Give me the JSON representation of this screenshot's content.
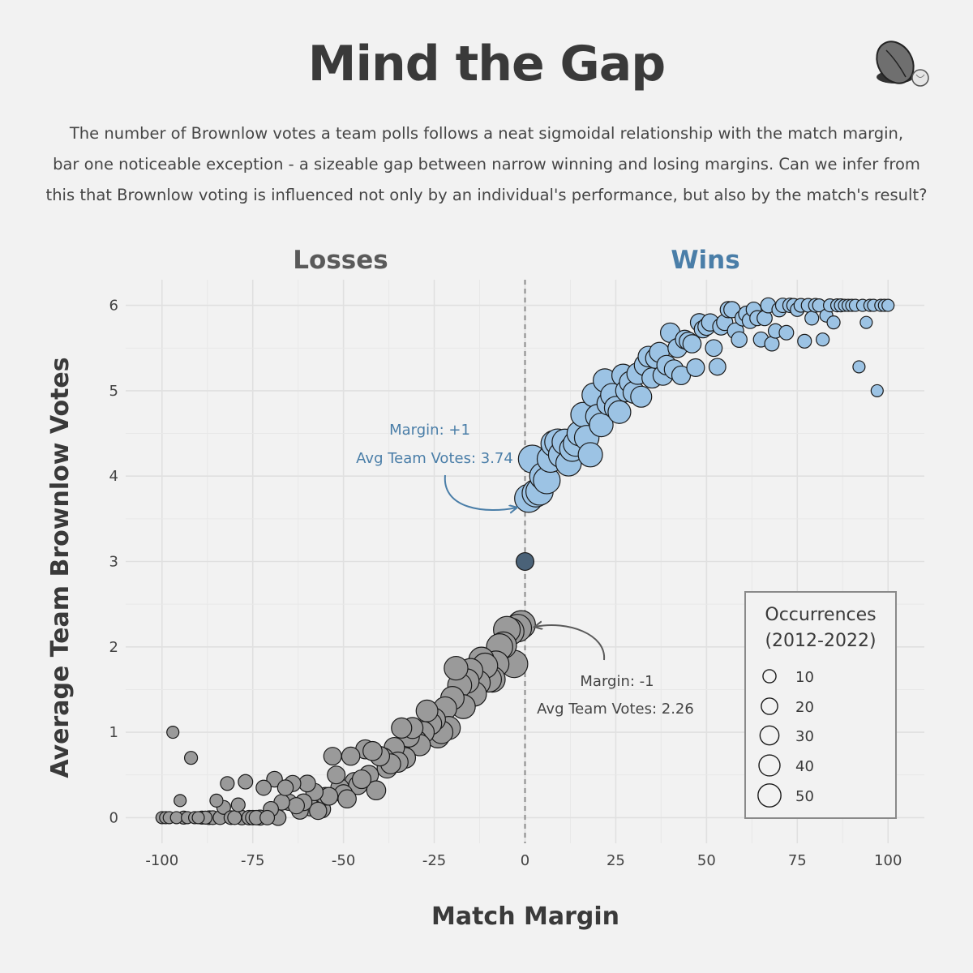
{
  "header": {
    "title": "Mind the Gap",
    "subtitle_lines": [
      "The number of Brownlow votes a team polls follows a neat sigmoidal relationship with the match margin,",
      "bar one noticeable exception - a sizeable gap between narrow winning and losing margins. Can we infer from",
      "this that Brownlow voting is influenced not only by an individual's performance, but also by the match's result?"
    ],
    "logo_icon": "football-icon"
  },
  "chart_data": {
    "type": "scatter",
    "xlabel": "Match Margin",
    "ylabel": "Average Team Brownlow Votes",
    "xlim": [
      -110,
      110
    ],
    "ylim": [
      -0.3,
      6.3
    ],
    "x_ticks": [
      -100,
      -75,
      -50,
      -25,
      0,
      25,
      50,
      75,
      100
    ],
    "y_ticks": [
      0,
      1,
      2,
      3,
      4,
      5,
      6
    ],
    "grid": true,
    "group_labels": {
      "losses": "Losses",
      "wins": "Wins"
    },
    "colors": {
      "losses": "#9a9a9a",
      "wins": "#9cc3e4",
      "draw": "#4a6278",
      "wins_text": "#4a7ea8",
      "losses_text": "#5a5a5a"
    },
    "zero_line": true,
    "annotations": [
      {
        "lines": [
          "Margin: +1",
          "Avg Team Votes: 3.74"
        ],
        "x": 1,
        "y": 3.74,
        "group": "wins"
      },
      {
        "lines": [
          "Margin: -1",
          "Avg Team Votes: 2.26"
        ],
        "x": -1,
        "y": 2.26,
        "group": "losses"
      }
    ],
    "legend": {
      "title_lines": [
        "Occurrences",
        "(2012-2022)"
      ],
      "placement": "bottom-right",
      "sizes": [
        10,
        20,
        30,
        40,
        50
      ],
      "labels": [
        "10",
        "20",
        "30",
        "40",
        "50"
      ]
    },
    "series": [
      {
        "group": "losses",
        "points": [
          [
            -100,
            0,
            3
          ],
          [
            -99,
            0,
            3
          ],
          [
            -98,
            0,
            3
          ],
          [
            -97,
            1,
            3
          ],
          [
            -96,
            0,
            3
          ],
          [
            -95,
            0.2,
            3
          ],
          [
            -94,
            0,
            4
          ],
          [
            -93,
            0,
            3
          ],
          [
            -92,
            0.7,
            4
          ],
          [
            -91,
            0,
            3
          ],
          [
            -90,
            0,
            3
          ],
          [
            -89,
            0,
            4
          ],
          [
            -88,
            0,
            4
          ],
          [
            -87,
            0,
            5
          ],
          [
            -86,
            0,
            5
          ],
          [
            -85,
            0.2,
            4
          ],
          [
            -84,
            0,
            5
          ],
          [
            -83,
            0.12,
            5
          ],
          [
            -82,
            0.4,
            5
          ],
          [
            -81,
            0,
            5
          ],
          [
            -80,
            0,
            5
          ],
          [
            -79,
            0.15,
            5
          ],
          [
            -78,
            0,
            6
          ],
          [
            -77,
            0.42,
            6
          ],
          [
            -76,
            0,
            6
          ],
          [
            -75,
            0,
            6
          ],
          [
            -74,
            0,
            6
          ],
          [
            -73,
            0,
            7
          ],
          [
            -72,
            0.35,
            7
          ],
          [
            -71,
            0,
            6
          ],
          [
            -70,
            0.1,
            7
          ],
          [
            -69,
            0.45,
            8
          ],
          [
            -68,
            0,
            8
          ],
          [
            -67,
            0.18,
            8
          ],
          [
            -66,
            0.35,
            8
          ],
          [
            -65,
            0.18,
            9
          ],
          [
            -64,
            0.4,
            9
          ],
          [
            -63,
            0.14,
            9
          ],
          [
            -62,
            0.08,
            10
          ],
          [
            -61,
            0.18,
            10
          ],
          [
            -60,
            0.4,
            10
          ],
          [
            -59,
            0.12,
            11
          ],
          [
            -58,
            0.3,
            11
          ],
          [
            -57,
            0.08,
            11
          ],
          [
            -56,
            0.1,
            12
          ],
          [
            -55,
            0.25,
            12
          ],
          [
            -54,
            0.25,
            12
          ],
          [
            -53,
            0.72,
            12
          ],
          [
            -52,
            0.5,
            12
          ],
          [
            -51,
            0.35,
            13
          ],
          [
            -50,
            0.28,
            13
          ],
          [
            -49,
            0.22,
            13
          ],
          [
            -48,
            0.72,
            13
          ],
          [
            -47,
            0.42,
            14
          ],
          [
            -46,
            0.38,
            14
          ],
          [
            -45,
            0.45,
            14
          ],
          [
            -44,
            0.8,
            15
          ],
          [
            -43,
            0.5,
            15
          ],
          [
            -42,
            0.78,
            15
          ],
          [
            -41,
            0.32,
            15
          ],
          [
            -40,
            0.72,
            16
          ],
          [
            -39,
            0.7,
            17
          ],
          [
            -38,
            0.58,
            17
          ],
          [
            -37,
            0.63,
            17
          ],
          [
            -36,
            0.82,
            18
          ],
          [
            -35,
            0.65,
            18
          ],
          [
            -34,
            1.05,
            18
          ],
          [
            -33,
            0.7,
            19
          ],
          [
            -32,
            0.95,
            20
          ],
          [
            -31,
            1.05,
            20
          ],
          [
            -30,
            0.9,
            21
          ],
          [
            -29,
            0.85,
            21
          ],
          [
            -28,
            1.0,
            22
          ],
          [
            -27,
            1.25,
            22
          ],
          [
            -26,
            1.1,
            23
          ],
          [
            -25,
            1.15,
            24
          ],
          [
            -24,
            0.95,
            25
          ],
          [
            -23,
            1.0,
            25
          ],
          [
            -22,
            1.28,
            26
          ],
          [
            -21,
            1.05,
            26
          ],
          [
            -20,
            1.4,
            27
          ],
          [
            -19,
            1.75,
            28
          ],
          [
            -18,
            1.55,
            29
          ],
          [
            -17,
            1.3,
            29
          ],
          [
            -16,
            1.6,
            30
          ],
          [
            -15,
            1.72,
            31
          ],
          [
            -14,
            1.45,
            31
          ],
          [
            -13,
            1.58,
            32
          ],
          [
            -12,
            1.85,
            33
          ],
          [
            -11,
            1.78,
            33
          ],
          [
            -10,
            1.62,
            34
          ],
          [
            -9,
            1.62,
            35
          ],
          [
            -8,
            1.8,
            36
          ],
          [
            -7,
            2.0,
            37
          ],
          [
            -6,
            2.02,
            38
          ],
          [
            -5,
            2.2,
            39
          ],
          [
            -4,
            2.18,
            40
          ],
          [
            -3,
            1.8,
            41
          ],
          [
            -2,
            2.22,
            42
          ],
          [
            -1,
            2.26,
            44
          ]
        ]
      },
      {
        "group": "draw",
        "points": [
          [
            0,
            3.0,
            12
          ]
        ]
      },
      {
        "group": "wins",
        "points": [
          [
            1,
            3.74,
            44
          ],
          [
            2,
            4.2,
            43
          ],
          [
            3,
            3.8,
            42
          ],
          [
            4,
            3.82,
            41
          ],
          [
            5,
            4.0,
            40
          ],
          [
            6,
            3.95,
            39
          ],
          [
            7,
            4.2,
            38
          ],
          [
            8,
            4.38,
            37
          ],
          [
            9,
            4.4,
            36
          ],
          [
            10,
            4.25,
            35
          ],
          [
            11,
            4.4,
            35
          ],
          [
            12,
            4.15,
            34
          ],
          [
            13,
            4.32,
            33
          ],
          [
            14,
            4.38,
            33
          ],
          [
            15,
            4.5,
            32
          ],
          [
            16,
            4.72,
            31
          ],
          [
            17,
            4.45,
            31
          ],
          [
            18,
            4.25,
            30
          ],
          [
            19,
            4.95,
            29
          ],
          [
            20,
            4.7,
            29
          ],
          [
            21,
            4.6,
            28
          ],
          [
            22,
            5.12,
            27
          ],
          [
            23,
            4.85,
            26
          ],
          [
            24,
            4.95,
            26
          ],
          [
            25,
            4.8,
            25
          ],
          [
            26,
            4.75,
            25
          ],
          [
            27,
            5.18,
            24
          ],
          [
            28,
            5.0,
            23
          ],
          [
            29,
            5.1,
            22
          ],
          [
            30,
            4.98,
            22
          ],
          [
            31,
            5.2,
            21
          ],
          [
            32,
            4.93,
            20
          ],
          [
            33,
            5.3,
            20
          ],
          [
            34,
            5.4,
            19
          ],
          [
            35,
            5.15,
            18
          ],
          [
            36,
            5.38,
            18
          ],
          [
            37,
            5.45,
            17
          ],
          [
            38,
            5.18,
            17
          ],
          [
            39,
            5.3,
            16
          ],
          [
            40,
            5.68,
            16
          ],
          [
            41,
            5.25,
            15
          ],
          [
            42,
            5.5,
            15
          ],
          [
            43,
            5.18,
            14
          ],
          [
            44,
            5.6,
            14
          ],
          [
            45,
            5.58,
            13
          ],
          [
            46,
            5.55,
            13
          ],
          [
            47,
            5.27,
            12
          ],
          [
            48,
            5.8,
            12
          ],
          [
            49,
            5.72,
            11
          ],
          [
            50,
            5.75,
            11
          ],
          [
            51,
            5.8,
            11
          ],
          [
            52,
            5.5,
            10
          ],
          [
            53,
            5.28,
            10
          ],
          [
            54,
            5.75,
            10
          ],
          [
            55,
            5.8,
            9
          ],
          [
            56,
            5.95,
            9
          ],
          [
            57,
            5.95,
            9
          ],
          [
            58,
            5.7,
            9
          ],
          [
            59,
            5.6,
            8
          ],
          [
            60,
            5.85,
            8
          ],
          [
            61,
            5.9,
            8
          ],
          [
            62,
            5.82,
            8
          ],
          [
            63,
            5.95,
            7
          ],
          [
            64,
            5.85,
            7
          ],
          [
            65,
            5.6,
            7
          ],
          [
            66,
            5.85,
            7
          ],
          [
            67,
            6.0,
            7
          ],
          [
            68,
            5.55,
            6
          ],
          [
            69,
            5.7,
            6
          ],
          [
            70,
            5.95,
            6
          ],
          [
            71,
            6.0,
            6
          ],
          [
            72,
            5.68,
            6
          ],
          [
            73,
            6.0,
            6
          ],
          [
            74,
            6.0,
            5
          ],
          [
            75,
            5.95,
            5
          ],
          [
            76,
            6.0,
            5
          ],
          [
            77,
            5.58,
            5
          ],
          [
            78,
            6.0,
            5
          ],
          [
            79,
            5.85,
            5
          ],
          [
            80,
            6.0,
            5
          ],
          [
            81,
            6.0,
            4
          ],
          [
            82,
            5.6,
            4
          ],
          [
            83,
            5.88,
            4
          ],
          [
            84,
            6.0,
            4
          ],
          [
            85,
            5.8,
            4
          ],
          [
            86,
            6.0,
            4
          ],
          [
            87,
            6.0,
            4
          ],
          [
            88,
            6.0,
            3
          ],
          [
            89,
            6.0,
            3
          ],
          [
            90,
            6.0,
            3
          ],
          [
            91,
            6.0,
            3
          ],
          [
            92,
            5.28,
            3
          ],
          [
            93,
            6.0,
            3
          ],
          [
            94,
            5.8,
            3
          ],
          [
            95,
            6.0,
            3
          ],
          [
            96,
            6.0,
            3
          ],
          [
            97,
            5.0,
            3
          ],
          [
            98,
            6.0,
            3
          ],
          [
            99,
            6.0,
            3
          ],
          [
            100,
            6.0,
            3
          ]
        ]
      }
    ]
  }
}
